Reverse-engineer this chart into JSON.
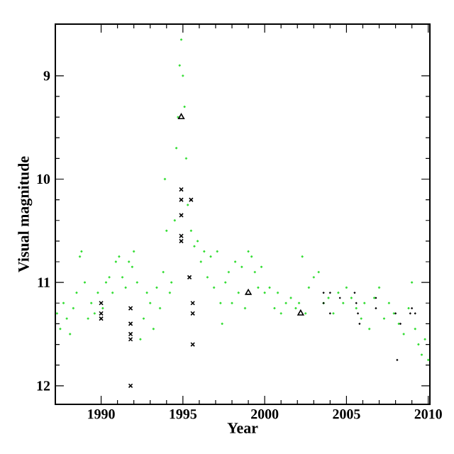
{
  "chart_data": {
    "type": "scatter",
    "xlabel": "Year",
    "ylabel": "Visual magnitude",
    "xlim": [
      1987.2,
      2010.1
    ],
    "ylim": [
      12.18,
      8.5
    ],
    "xticks": [
      1990,
      1995,
      2000,
      2005,
      2010
    ],
    "yticks": [
      9,
      10,
      11,
      12
    ],
    "grid": false,
    "series": [
      {
        "color": "#33dd33",
        "marker": "circle",
        "x": [
          1987.3,
          1987.5,
          1987.7,
          1987.9,
          1988.1,
          1988.3,
          1988.5,
          1988.7,
          1988.8,
          1989.0,
          1989.2,
          1989.4,
          1989.6,
          1989.8,
          1990.1,
          1990.3,
          1990.5,
          1990.7,
          1990.9,
          1991.1,
          1991.3,
          1991.5,
          1991.7,
          1991.9,
          1992.0,
          1992.2,
          1992.4,
          1992.6,
          1992.8,
          1993.0,
          1993.2,
          1993.4,
          1993.6,
          1993.8,
          1993.9,
          1994.0,
          1994.2,
          1994.3,
          1994.5,
          1994.6,
          1994.7,
          1994.8,
          1994.9,
          1995.0,
          1995.1,
          1995.2,
          1995.3,
          1995.5,
          1995.7,
          1995.9,
          1996.1,
          1996.3,
          1996.5,
          1996.7,
          1996.9,
          1997.1,
          1997.3,
          1997.4,
          1997.6,
          1997.8,
          1998.0,
          1998.2,
          1998.4,
          1998.6,
          1998.8,
          1999.0,
          1999.2,
          1999.4,
          1999.6,
          1999.8,
          2000.0,
          2000.3,
          2000.6,
          2000.8,
          2001.0,
          2001.3,
          2001.6,
          2001.9,
          2002.1,
          2002.3,
          2002.5,
          2002.7,
          2003.0,
          2003.3,
          2003.6,
          2003.9,
          2004.2,
          2004.5,
          2004.8,
          2005.0,
          2005.3,
          2005.6,
          2005.9,
          2006.1,
          2006.4,
          2006.7,
          2007.0,
          2007.3,
          2007.6,
          2007.9,
          2008.2,
          2008.5,
          2008.8,
          2009.0,
          2009.2,
          2009.4,
          2009.6,
          2009.8,
          2010.0
        ],
        "values": [
          11.3,
          11.45,
          11.2,
          11.35,
          11.5,
          11.25,
          11.1,
          10.75,
          10.7,
          11.0,
          11.35,
          11.2,
          11.3,
          11.1,
          11.25,
          11.0,
          10.95,
          11.1,
          10.8,
          10.75,
          10.95,
          11.05,
          10.8,
          10.85,
          10.7,
          11.0,
          11.55,
          11.35,
          11.1,
          11.2,
          11.45,
          11.05,
          11.25,
          10.9,
          10.0,
          10.5,
          11.1,
          11.0,
          10.4,
          9.7,
          9.4,
          8.9,
          8.65,
          9.0,
          9.3,
          9.8,
          10.25,
          10.5,
          10.65,
          10.6,
          10.8,
          10.7,
          10.95,
          10.75,
          11.05,
          10.7,
          11.2,
          11.4,
          11.0,
          10.9,
          11.2,
          10.8,
          11.1,
          10.85,
          11.25,
          10.7,
          10.75,
          10.9,
          11.05,
          10.85,
          11.1,
          11.05,
          11.25,
          11.1,
          11.3,
          11.2,
          11.15,
          11.25,
          11.2,
          10.75,
          11.3,
          11.05,
          10.95,
          10.9,
          11.2,
          11.15,
          11.3,
          11.1,
          11.2,
          11.05,
          11.15,
          11.25,
          11.35,
          11.2,
          11.45,
          11.15,
          11.05,
          11.35,
          11.2,
          11.3,
          11.4,
          11.5,
          11.25,
          11.0,
          11.45,
          11.6,
          11.7,
          11.55,
          11.75
        ]
      },
      {
        "color": "#000000",
        "marker": "cross",
        "x": [
          1990.0,
          1990.0,
          1990.0,
          1991.8,
          1991.8,
          1991.8,
          1991.8,
          1991.8,
          1994.9,
          1994.9,
          1994.9,
          1994.9,
          1994.9,
          1995.5,
          1995.4,
          1995.6,
          1995.6,
          1995.6
        ],
        "values": [
          11.2,
          11.3,
          11.35,
          11.25,
          11.4,
          11.5,
          11.55,
          12.0,
          10.1,
          10.2,
          10.35,
          10.55,
          10.6,
          10.2,
          10.95,
          11.2,
          11.3,
          11.6
        ]
      },
      {
        "color": "#000000",
        "marker": "triangle",
        "x": [
          1994.9,
          1999.0,
          2002.2
        ],
        "values": [
          9.4,
          11.1,
          11.3
        ]
      },
      {
        "color": "#000000",
        "marker": "dot",
        "x": [
          2003.6,
          2003.6,
          2004.0,
          2004.0,
          2004.6,
          2005.5,
          2005.6,
          2005.7,
          2005.8,
          2006.8,
          2006.8,
          2008.0,
          2008.3,
          2008.9,
          2009.0,
          2009.2,
          2008.1
        ],
        "values": [
          11.1,
          11.2,
          11.1,
          11.3,
          11.15,
          11.1,
          11.2,
          11.3,
          11.4,
          11.15,
          11.25,
          11.3,
          11.4,
          11.3,
          11.25,
          11.3,
          11.75
        ]
      }
    ]
  }
}
